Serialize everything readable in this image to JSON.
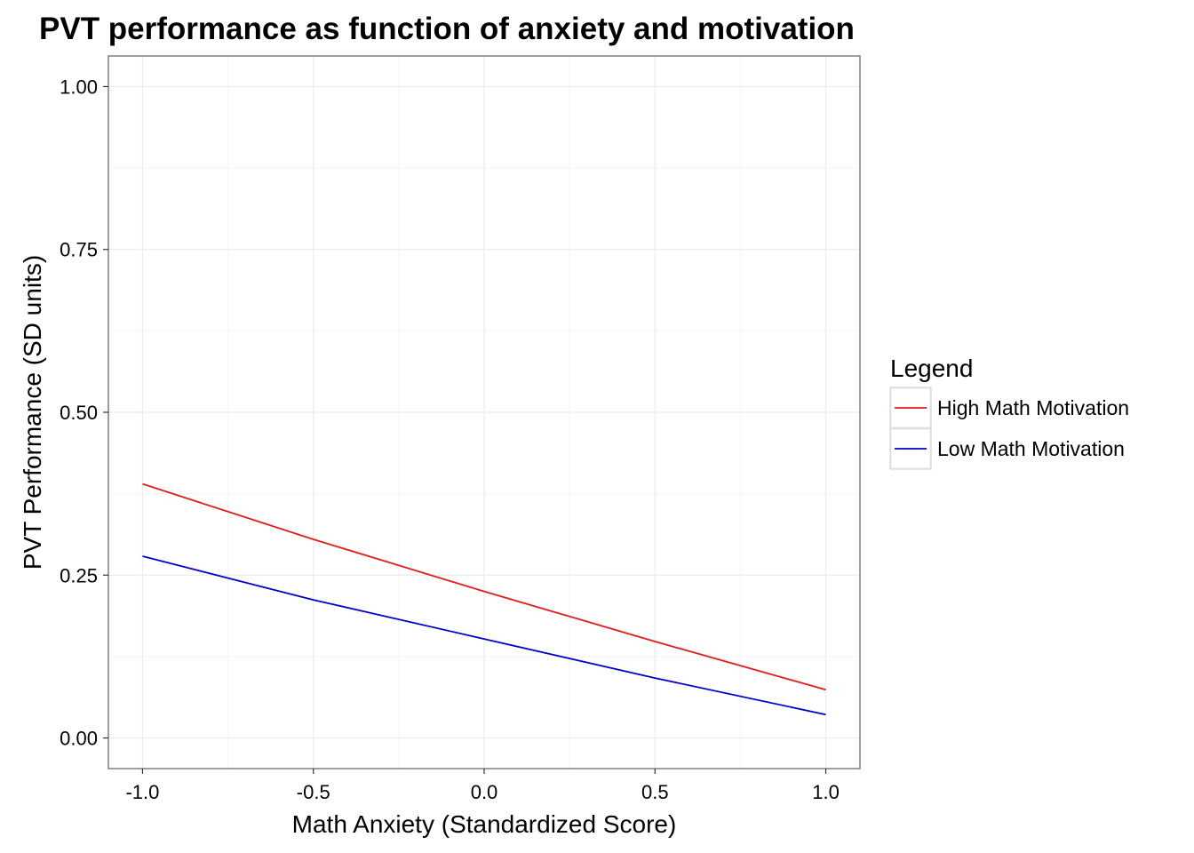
{
  "chart_data": {
    "type": "line",
    "title": "PVT performance as function of anxiety and motivation",
    "xlabel": "Math Anxiety (Standardized Score)",
    "ylabel": "PVT Performance (SD units)",
    "xlim": [
      -1.1,
      1.1
    ],
    "ylim": [
      -0.047,
      1.047
    ],
    "x_ticks": [
      -1.0,
      -0.5,
      0.0,
      0.5,
      1.0
    ],
    "x_tick_labels": [
      "-1.0",
      "-0.5",
      "0.0",
      "0.5",
      "1.0"
    ],
    "y_ticks": [
      0.0,
      0.25,
      0.5,
      0.75,
      1.0
    ],
    "y_tick_labels": [
      "0.00",
      "0.25",
      "0.50",
      "0.75",
      "1.00"
    ],
    "grid": true,
    "legend": {
      "title": "Legend",
      "position": "right"
    },
    "series": [
      {
        "name": "High Math Motivation",
        "color": "#e41a1c",
        "x": [
          -1.0,
          -0.5,
          0.0,
          0.5,
          1.0
        ],
        "y": [
          0.39,
          0.305,
          0.225,
          0.148,
          0.074
        ]
      },
      {
        "name": "Low Math Motivation",
        "color": "#0000cc",
        "x": [
          -1.0,
          -0.5,
          0.0,
          0.5,
          1.0
        ],
        "y": [
          0.279,
          0.212,
          0.152,
          0.092,
          0.036
        ]
      }
    ]
  }
}
